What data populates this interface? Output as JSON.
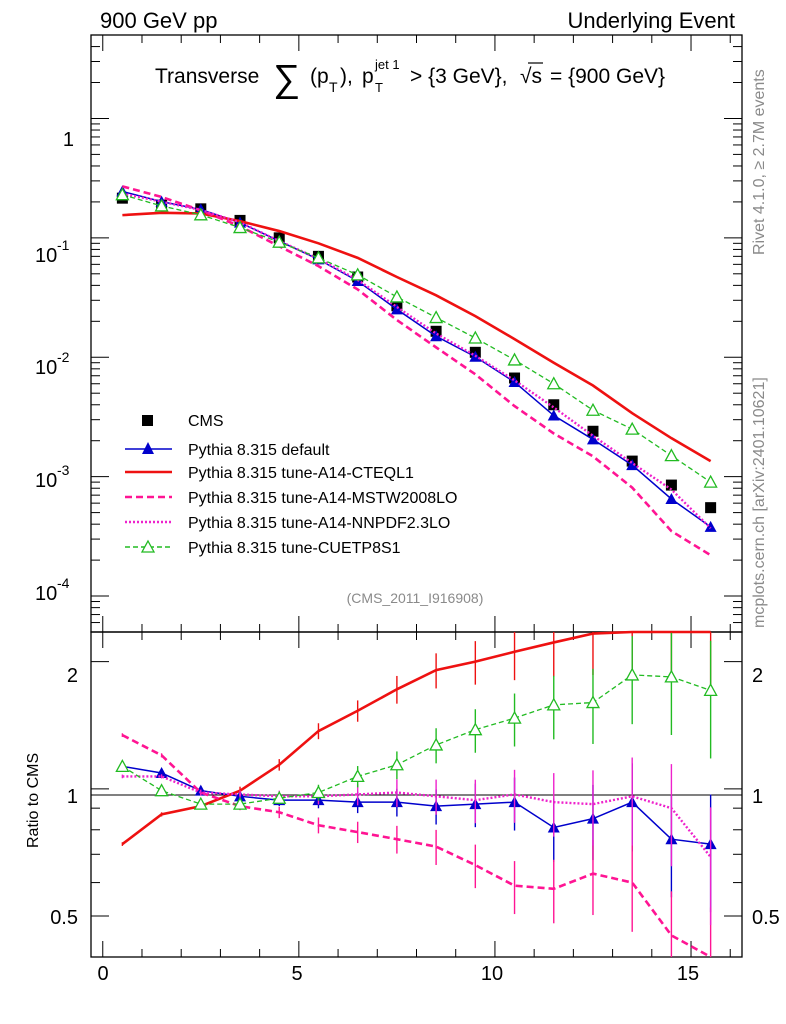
{
  "header": {
    "left": "900 GeV pp",
    "right": "Underlying Event"
  },
  "title": {
    "prefix": "Transverse",
    "sum": "∑",
    "arg": "(p",
    "arg_sub": "T",
    "arg_close": "),",
    "cut_p": "p",
    "cut_sup": "jet 1",
    "cut_sub": "T",
    "cut_rest": "> {3 GeV},",
    "sqrt": "√s",
    "energy": "= {900 GeV}"
  },
  "side_labels": {
    "rivet": "Rivet 4.1.0, ≥ 2.7M events",
    "mcplots": "mcplots.cern.ch [arXiv:2401.10621]"
  },
  "analysis_id": "(CMS_2011_I916908)",
  "ratio_ylabel": "Ratio to CMS",
  "legend": [
    {
      "label": "CMS",
      "color": "#000000",
      "style": "data"
    },
    {
      "label": "Pythia 8.315 default",
      "color": "#0000cc",
      "style": "solid-tri"
    },
    {
      "label": "Pythia 8.315 tune-A14-CTEQL1",
      "color": "#ee1111",
      "style": "solid"
    },
    {
      "label": "Pythia 8.315 tune-A14-MSTW2008LO",
      "color": "#ff1493",
      "style": "dashed"
    },
    {
      "label": "Pythia 8.315 tune-A14-NNPDF2.3LO",
      "color": "#ee22cc",
      "style": "dotted"
    },
    {
      "label": "Pythia 8.315 tune-CUETP8S1",
      "color": "#22bb22",
      "style": "dashed-opentri"
    }
  ],
  "main_tick_labels": {
    "exp": [
      "-4",
      "-3",
      "-2",
      "-1"
    ],
    "one": "1",
    "base": "10"
  },
  "ratio_tick_labels": [
    "0.5",
    "1",
    "2"
  ],
  "x_tick_labels": [
    "0",
    "5",
    "10",
    "15"
  ],
  "chart_data": {
    "type": "line",
    "x": [
      0.5,
      1.5,
      2.5,
      3.5,
      4.5,
      5.5,
      6.5,
      7.5,
      8.5,
      9.5,
      10.5,
      11.5,
      12.5,
      13.5,
      14.5,
      15.5
    ],
    "xlim": [
      -0.3,
      16.3
    ],
    "main_ylim": [
      5e-05,
      5
    ],
    "main_yscale": "log",
    "ratio_ylim": [
      0.4,
      2.35
    ],
    "ratio_yscale": "log",
    "series": [
      {
        "name": "CMS",
        "color": "#000000",
        "values": [
          0.215,
          0.188,
          0.175,
          0.14,
          0.1,
          0.07,
          0.047,
          0.027,
          0.0165,
          0.011,
          0.0067,
          0.004,
          0.0024,
          0.00135,
          0.00085,
          0.00055
        ]
      },
      {
        "name": "Pythia 8.315 default",
        "color": "#0000cc",
        "values": [
          0.245,
          0.201,
          0.173,
          0.134,
          0.094,
          0.066,
          0.0435,
          0.0252,
          0.015,
          0.0101,
          0.0062,
          0.00325,
          0.00205,
          0.00125,
          0.00065,
          0.00038
        ],
        "ratio": [
          1.13,
          1.09,
          0.99,
          0.96,
          0.94,
          0.94,
          0.93,
          0.93,
          0.91,
          0.92,
          0.93,
          0.81,
          0.85,
          0.93,
          0.76,
          0.74
        ]
      },
      {
        "name": "Pythia 8.315 tune-A14-CTEQL1",
        "color": "#ee1111",
        "values": [
          0.155,
          0.162,
          0.16,
          0.138,
          0.114,
          0.09,
          0.068,
          0.047,
          0.033,
          0.0221,
          0.0142,
          0.009,
          0.0058,
          0.0034,
          0.0021,
          0.00135
        ],
        "ratio": [
          0.74,
          0.87,
          0.91,
          0.99,
          1.14,
          1.37,
          1.53,
          1.72,
          1.91,
          2.0,
          2.11,
          2.22,
          2.33,
          2.48,
          2.45,
          2.45
        ]
      },
      {
        "name": "Pythia 8.315 tune-A14-MSTW2008LO",
        "color": "#ff1493",
        "values": [
          0.27,
          0.22,
          0.17,
          0.125,
          0.085,
          0.058,
          0.037,
          0.0205,
          0.0121,
          0.0072,
          0.0039,
          0.0023,
          0.00148,
          0.00081,
          0.00035,
          0.00022
        ],
        "ratio": [
          1.34,
          1.2,
          0.98,
          0.91,
          0.88,
          0.82,
          0.79,
          0.76,
          0.73,
          0.66,
          0.59,
          0.58,
          0.63,
          0.6,
          0.45,
          0.4
        ]
      },
      {
        "name": "Pythia 8.315 tune-A14-NNPDF2.3LO",
        "color": "#ee22cc",
        "values": [
          0.235,
          0.201,
          0.171,
          0.135,
          0.094,
          0.067,
          0.0445,
          0.0264,
          0.0158,
          0.0103,
          0.0064,
          0.0038,
          0.0022,
          0.0013,
          0.00078,
          0.00037
        ],
        "ratio": [
          1.07,
          1.07,
          0.98,
          0.97,
          0.96,
          0.96,
          0.97,
          0.98,
          0.96,
          0.94,
          0.97,
          0.93,
          0.92,
          0.96,
          0.9,
          0.69
        ]
      },
      {
        "name": "Pythia 8.315 tune-CUETP8S1",
        "color": "#22bb22",
        "values": [
          0.23,
          0.185,
          0.156,
          0.122,
          0.092,
          0.068,
          0.049,
          0.032,
          0.0215,
          0.0145,
          0.0095,
          0.006,
          0.0036,
          0.0025,
          0.0015,
          0.0009
        ],
        "ratio": [
          1.13,
          0.99,
          0.92,
          0.92,
          0.95,
          0.98,
          1.07,
          1.14,
          1.27,
          1.38,
          1.47,
          1.58,
          1.6,
          1.86,
          1.84,
          1.71
        ]
      }
    ]
  }
}
